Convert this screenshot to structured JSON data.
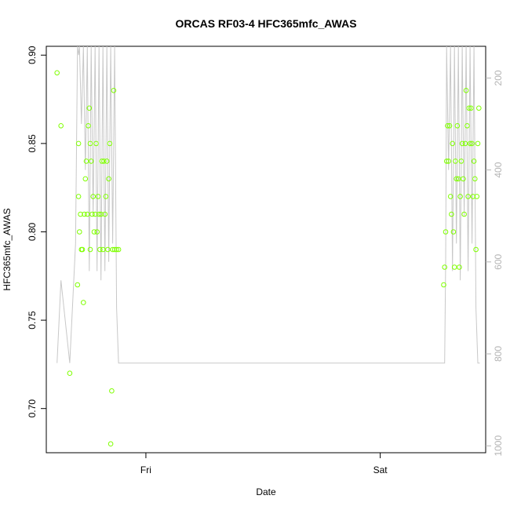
{
  "chart_data": {
    "type": "scatter",
    "title": "ORCAS RF03-4 HFC365mfc_AWAS",
    "xlabel": "Date",
    "ylabel": "HFC365mfc_AWAS",
    "x_ticks": [
      "Fri",
      "Sat"
    ],
    "x_tick_pos_hours": [
      24,
      48
    ],
    "xlim_hours": [
      13.8,
      58.8
    ],
    "ylim": [
      0.675,
      0.905
    ],
    "y_ticks": [
      0.7,
      0.75,
      0.8,
      0.85,
      0.9
    ],
    "y_tick_labels": [
      "0.70",
      "0.75",
      "0.80",
      "0.85",
      "0.90"
    ],
    "y2_ticks": [
      200,
      400,
      600,
      800,
      1000
    ],
    "y2_tick_labels": [
      "200",
      "400",
      "600",
      "800",
      "1000"
    ],
    "y2lim": [
      1015,
      131
    ],
    "grid": false,
    "colors": {
      "points": "#7fff00",
      "line": "#c8c8c8",
      "right_axis": "#b4b4b4"
    },
    "series": [
      {
        "type": "points",
        "x_hours": [
          14.9,
          15.3,
          16.2,
          17.0,
          17.1,
          17.1,
          17.2,
          17.3,
          17.4,
          17.5,
          17.6,
          17.7,
          17.8,
          17.9,
          18.0,
          18.1,
          18.2,
          18.3,
          18.3,
          18.4,
          18.5,
          18.6,
          18.7,
          18.8,
          18.9,
          19.0,
          19.1,
          19.2,
          19.3,
          19.4,
          19.5,
          19.6,
          19.7,
          19.8,
          19.9,
          20.0,
          20.1,
          20.2,
          20.3,
          20.4,
          20.5,
          20.6,
          20.7,
          20.8,
          21.0,
          21.2,
          54.5,
          54.6,
          54.7,
          54.8,
          54.9,
          55.0,
          55.1,
          55.2,
          55.3,
          55.4,
          55.5,
          55.6,
          55.7,
          55.8,
          55.9,
          56.0,
          56.1,
          56.2,
          56.3,
          56.4,
          56.5,
          56.6,
          56.7,
          56.8,
          56.9,
          57.0,
          57.1,
          57.2,
          57.3,
          57.4,
          57.5,
          57.6,
          57.7,
          57.8,
          57.9,
          58.0,
          58.1
        ],
        "y": [
          0.89,
          0.86,
          0.72,
          0.77,
          0.82,
          0.85,
          0.8,
          0.81,
          0.79,
          0.79,
          0.76,
          0.81,
          0.83,
          0.84,
          0.81,
          0.86,
          0.87,
          0.85,
          0.79,
          0.84,
          0.81,
          0.82,
          0.8,
          0.81,
          0.85,
          0.8,
          0.82,
          0.81,
          0.79,
          0.81,
          0.84,
          0.79,
          0.84,
          0.81,
          0.82,
          0.84,
          0.79,
          0.83,
          0.85,
          0.68,
          0.71,
          0.79,
          0.88,
          0.79,
          0.79,
          0.79,
          0.77,
          0.78,
          0.8,
          0.84,
          0.86,
          0.84,
          0.86,
          0.82,
          0.81,
          0.85,
          0.8,
          0.78,
          0.84,
          0.83,
          0.86,
          0.83,
          0.78,
          0.82,
          0.84,
          0.85,
          0.83,
          0.81,
          0.85,
          0.88,
          0.86,
          0.82,
          0.87,
          0.85,
          0.87,
          0.85,
          0.82,
          0.84,
          0.83,
          0.79,
          0.82,
          0.85,
          0.87
        ]
      },
      {
        "type": "line",
        "axis": "right",
        "x_hours": [
          14.9,
          15.3,
          16.2,
          16.8,
          17.0,
          17.1,
          17.2,
          17.4,
          17.6,
          17.8,
          18.0,
          18.2,
          18.4,
          18.6,
          18.8,
          19.0,
          19.2,
          19.4,
          19.6,
          19.8,
          20.0,
          20.2,
          20.4,
          20.6,
          20.8,
          21.0,
          21.2,
          22.0,
          30.0,
          40.0,
          50.0,
          54.6,
          54.7,
          54.8,
          55.0,
          55.2,
          55.4,
          55.6,
          55.8,
          56.0,
          56.2,
          56.4,
          56.6,
          56.8,
          57.0,
          57.2,
          57.4,
          57.6,
          57.8,
          58.0,
          58.2
        ],
        "y": [
          820,
          640,
          820,
          560,
          131,
          150,
          131,
          300,
          131,
          400,
          131,
          620,
          131,
          500,
          131,
          620,
          131,
          640,
          131,
          620,
          131,
          600,
          131,
          560,
          131,
          700,
          820,
          820,
          820,
          820,
          820,
          820,
          600,
          131,
          400,
          131,
          620,
          131,
          560,
          131,
          640,
          131,
          500,
          131,
          620,
          131,
          560,
          131,
          700,
          820,
          820
        ]
      }
    ]
  }
}
